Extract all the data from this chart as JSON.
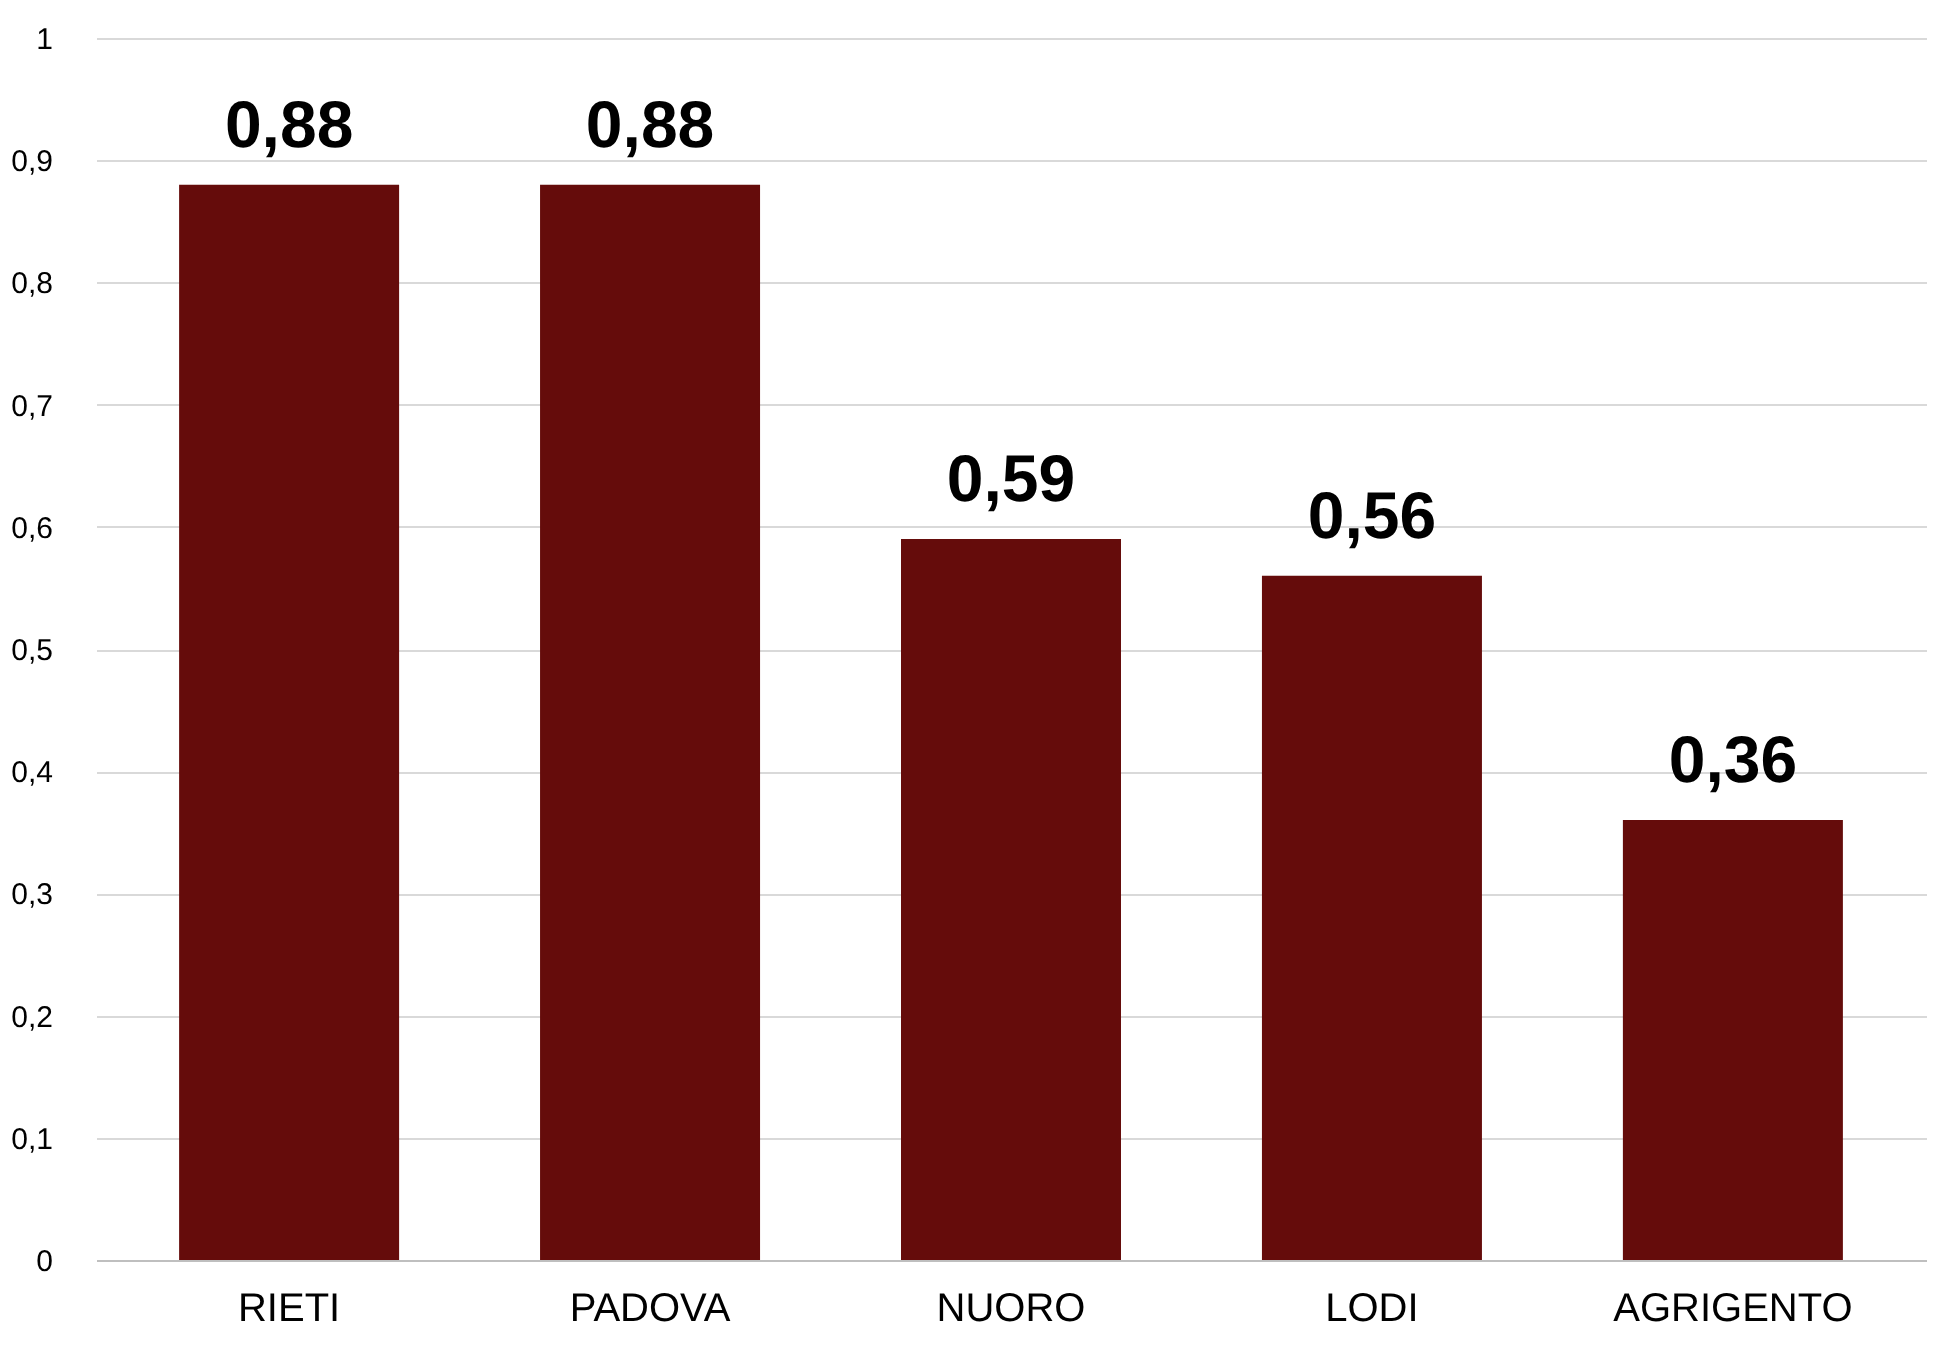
{
  "chart_data": {
    "type": "bar",
    "categories": [
      "RIETI",
      "PADOVA",
      "NUORO",
      "LODI",
      "AGRIGENTO"
    ],
    "values": [
      0.88,
      0.88,
      0.59,
      0.56,
      0.36
    ],
    "value_labels": [
      "0,88",
      "0,88",
      "0,59",
      "0,56",
      "0,36"
    ],
    "color": "#650c0b",
    "ylim": [
      0,
      1
    ],
    "yticks": [
      0,
      {
        "value": 0.1,
        "label": "0,1"
      },
      {
        "value": 0.2,
        "label": "0,2"
      },
      {
        "value": 0.3,
        "label": "0,3"
      },
      {
        "value": 0.4,
        "label": "0,4"
      },
      {
        "value": 0.5,
        "label": "0,5"
      },
      {
        "value": 0.6,
        "label": "0,6"
      },
      {
        "value": 0.7,
        "label": "0,7"
      },
      {
        "value": 0.8,
        "label": "0,8"
      },
      {
        "value": 0.9,
        "label": "0,9"
      },
      1
    ],
    "grid": "y"
  }
}
